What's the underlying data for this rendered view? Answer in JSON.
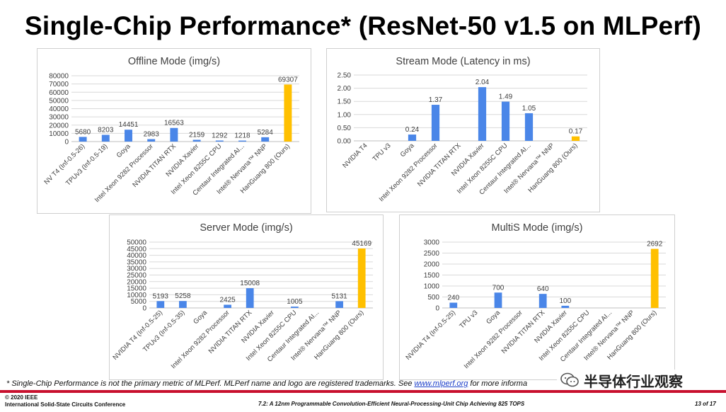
{
  "slide": {
    "title": "Single-Chip Performance* (ResNet-50 v1.5 on MLPerf)",
    "footnote_text": "* Single-Chip Performance is not the primary metric of MLPerf. MLPerf name and logo are registered trademarks. See ",
    "footnote_link": "www.mlperf.org",
    "footnote_tail": " for more informa",
    "watermark": "半导体行业观察",
    "copyright_line1": "© 2020 IEEE",
    "copyright_line2": "International Solid-State Circuits Conference",
    "paper_title": "7.2: A 12nm Programmable Convolution-Efficient Neural-Processing-Unit Chip Achieving 825 TOPS",
    "page_number": "13 of 17"
  },
  "colors": {
    "bar": "#4a86e8",
    "highlight": "#ffc000",
    "grid": "#d9d9d9",
    "accent": "#c8102e"
  },
  "chart_data": [
    {
      "type": "bar",
      "title": "Offline Mode (img/s)",
      "categories": [
        "NV T4 (Inf-0.5-26)",
        "TPUv3 (Inf-0.5-19)",
        "Goya",
        "Intel Xeon 9282 Processor",
        "NVIDIA TITAN RTX",
        "NVIDIA Xavier",
        "Intel Xeon 8255C CPU",
        "Centaur Integrated AI...",
        "Intel® Nervana™ NNP",
        "HanGuang 800 (Ours)"
      ],
      "values": [
        5680,
        8203,
        14451,
        2983,
        16563,
        2159,
        1292,
        1218,
        5284,
        69307
      ],
      "labels": [
        "5680",
        "8203",
        "14451",
        "2983",
        "16563",
        "2159",
        "1292",
        "1218",
        "5284",
        "69307"
      ],
      "ylim": [
        0,
        80000
      ],
      "yticks": [
        0,
        10000,
        20000,
        30000,
        40000,
        50000,
        60000,
        70000,
        80000
      ],
      "ytick_labels": [
        "0",
        "10000",
        "20000",
        "30000",
        "40000",
        "50000",
        "60000",
        "70000",
        "80000"
      ],
      "highlight_index": 9,
      "grid": true
    },
    {
      "type": "bar",
      "title": "Stream Mode (Latency in ms)",
      "categories": [
        "NVIDIA T4",
        "TPU v3",
        "Goya",
        "Intel Xeon 9282 Processor",
        "NVIDIA TITAN RTX",
        "NVIDIA Xavier",
        "Intel Xeon 8255C CPU",
        "Centaur Integrated AI...",
        "Intel® Nervana™ NNP",
        "HanGuang 800 (Ours)"
      ],
      "values": [
        null,
        null,
        0.24,
        1.37,
        null,
        2.04,
        1.49,
        1.05,
        null,
        0.17
      ],
      "labels": [
        "",
        "",
        "0.24",
        "1.37",
        "",
        "2.04",
        "1.49",
        "1.05",
        "",
        "0.17"
      ],
      "ylim": [
        0,
        2.5
      ],
      "yticks": [
        0,
        0.5,
        1.0,
        1.5,
        2.0,
        2.5
      ],
      "ytick_labels": [
        "0.00",
        "0.50",
        "1.00",
        "1.50",
        "2.00",
        "2.50"
      ],
      "highlight_index": 9,
      "grid": true
    },
    {
      "type": "bar",
      "title": "Server Mode (img/s)",
      "categories": [
        "NVIDIA T4 (Inf-0.5-25)",
        "TPUv3 (Inf-0.5-35)",
        "Goya",
        "Intel Xeon 9282 Processor",
        "NVIDIA TITAN RTX",
        "NVIDIA Xavier",
        "Intel Xeon 8255C CPU",
        "Centaur Integrated AI...",
        "Intel® Nervana™ NNP",
        "HanGuang 800 (Ours)"
      ],
      "values": [
        5193,
        5258,
        null,
        2425,
        15008,
        null,
        1005,
        null,
        5131,
        45169
      ],
      "labels": [
        "5193",
        "5258",
        "",
        "2425",
        "15008",
        "",
        "1005",
        "",
        "5131",
        "45169"
      ],
      "ylim": [
        0,
        50000
      ],
      "yticks": [
        0,
        5000,
        10000,
        15000,
        20000,
        25000,
        30000,
        35000,
        40000,
        45000,
        50000
      ],
      "ytick_labels": [
        "0",
        "5000",
        "10000",
        "15000",
        "20000",
        "25000",
        "30000",
        "35000",
        "40000",
        "45000",
        "50000"
      ],
      "highlight_index": 9,
      "grid": true
    },
    {
      "type": "bar",
      "title": "MultiS Mode (img/s)",
      "categories": [
        "NVIDIA T4 (Inf-0.5-25)",
        "TPU v3",
        "Goya",
        "Intel Xeon 9282 Processor",
        "NVIDIA TITAN RTX",
        "NVIDIA Xavier",
        "Intel Xeon 8255C CPU",
        "Centaur Integrated AI...",
        "Intel® Nervana™ NNP",
        "HanGuang 800 (Ours)"
      ],
      "values": [
        240,
        null,
        700,
        null,
        640,
        100,
        null,
        null,
        null,
        2692
      ],
      "labels": [
        "240",
        "",
        "700",
        "",
        "640",
        "100",
        "",
        "",
        "",
        "2692"
      ],
      "ylim": [
        0,
        3000
      ],
      "yticks": [
        0,
        500,
        1000,
        1500,
        2000,
        2500,
        3000
      ],
      "ytick_labels": [
        "0",
        "500",
        "1000",
        "1500",
        "2000",
        "2500",
        "3000"
      ],
      "highlight_index": 9,
      "grid": true
    }
  ]
}
